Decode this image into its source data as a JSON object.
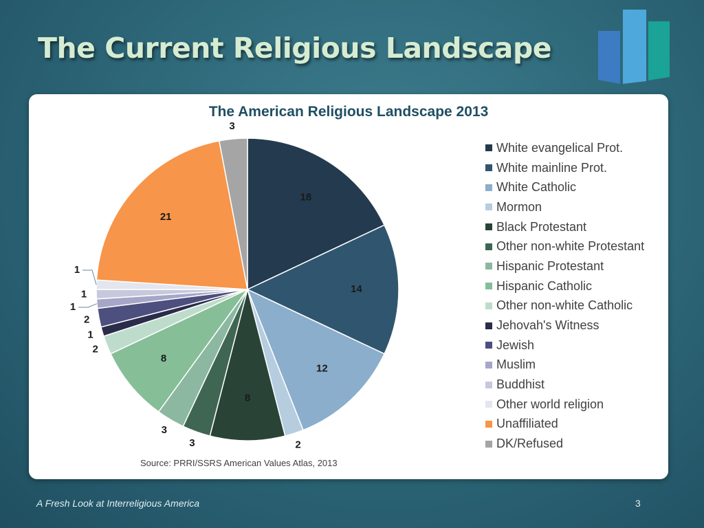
{
  "slide": {
    "title": "The Current Religious Landscape",
    "footer_text": "A Fresh Look at Interreligious America",
    "page_number": "3"
  },
  "chart_data": {
    "type": "pie",
    "title": "The American Religious Landscape 2013",
    "source": "Source: PRRI/SSRS American Values Atlas, 2013",
    "legend_position": "right",
    "slices": [
      {
        "label": "White evangelical Prot.",
        "value": 18,
        "color": "#243a4e"
      },
      {
        "label": "White mainline Prot.",
        "value": 14,
        "color": "#30566f"
      },
      {
        "label": "White Catholic",
        "value": 12,
        "color": "#8aaecb"
      },
      {
        "label": "Mormon",
        "value": 2,
        "color": "#b6cde0"
      },
      {
        "label": "Black Protestant",
        "value": 8,
        "color": "#294437"
      },
      {
        "label": "Other non-white Protestant",
        "value": 3,
        "color": "#3f6653"
      },
      {
        "label": "Hispanic Protestant",
        "value": 3,
        "color": "#8cb8a2"
      },
      {
        "label": "Hispanic Catholic",
        "value": 8,
        "color": "#86be98"
      },
      {
        "label": "Other non-white Catholic",
        "value": 2,
        "color": "#bedccb"
      },
      {
        "label": "Jehovah's Witness",
        "value": 1,
        "color": "#2a2c4a"
      },
      {
        "label": "Jewish",
        "value": 2,
        "color": "#4d4f7e"
      },
      {
        "label": "Muslim",
        "value": 1,
        "color": "#a6a6c8"
      },
      {
        "label": "Buddhist",
        "value": 1,
        "color": "#c6c8dc"
      },
      {
        "label": "Other world religion",
        "value": 1,
        "color": "#e3e5ef"
      },
      {
        "label": "Unaffiliated",
        "value": 21,
        "color": "#f7954a"
      },
      {
        "label": "DK/Refused",
        "value": 3,
        "color": "#a5a5a5"
      }
    ]
  },
  "logo_colors": [
    "#3d7cc2",
    "#4ea8dc",
    "#1aa396"
  ]
}
